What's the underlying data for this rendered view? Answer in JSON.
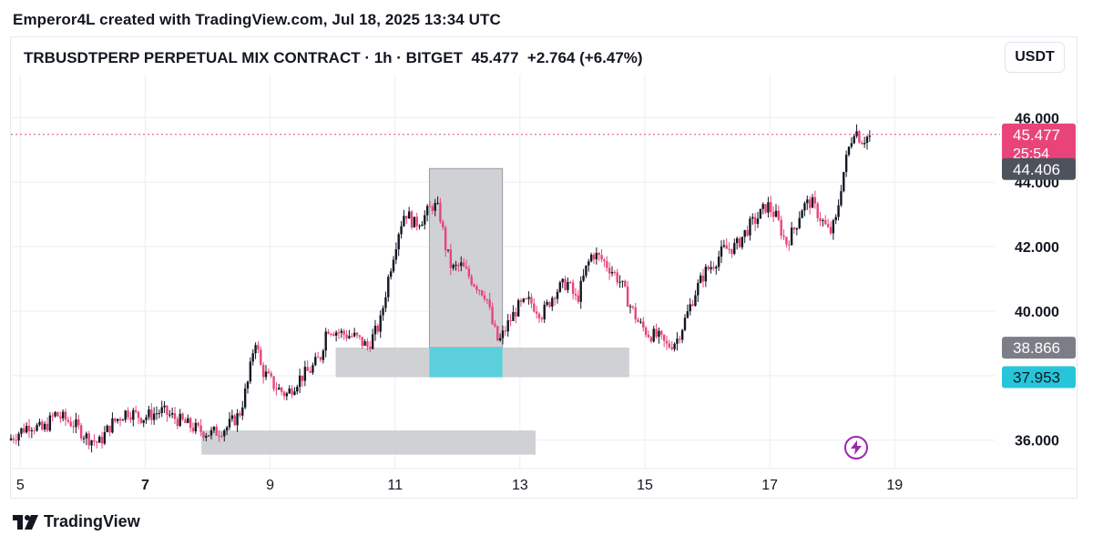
{
  "header": {
    "credit": "Emperor4L created with TradingView.com, Jul 18, 2025 13:34 UTC",
    "symbol": "TRBUSDTPERP PERPETUAL MIX CONTRACT · 1h · BITGET",
    "price": "45.477",
    "change": "+2.764 (+6.47%)",
    "currency": "USDT"
  },
  "footer": {
    "brand": "TradingView"
  },
  "colors": {
    "up": "#131722",
    "down": "#e8457a",
    "zone": "#c8c9cd",
    "cyan": "#5bcfdc",
    "price_tag": "#e9447a",
    "dark_tag": "#4e525c",
    "grey_tag": "#7b7e87",
    "cyan_tag": "#26c6da",
    "grid": "#eceef2"
  },
  "chart_data": {
    "type": "candlestick",
    "interval": "1h",
    "ylim": [
      35.4,
      46.6
    ],
    "xlim": [
      4.85,
      20.6
    ],
    "x_ticks": [
      {
        "v": 5,
        "label": "5"
      },
      {
        "v": 7,
        "label": "7"
      },
      {
        "v": 9,
        "label": "9"
      },
      {
        "v": 11,
        "label": "11"
      },
      {
        "v": 13,
        "label": "13"
      },
      {
        "v": 15,
        "label": "15"
      },
      {
        "v": 17,
        "label": "17"
      },
      {
        "v": 19,
        "label": "19"
      }
    ],
    "y_ticks": [
      {
        "v": 36,
        "label": "36.000"
      },
      {
        "v": 38,
        "label": ""
      },
      {
        "v": 40,
        "label": "40.000"
      },
      {
        "v": 42,
        "label": "42.000"
      },
      {
        "v": 44,
        "label": "44.000"
      },
      {
        "v": 46,
        "label": "46.000"
      }
    ],
    "price_tags": [
      {
        "value": 45.477,
        "label": "45.477",
        "sub": "25:54",
        "kind": "current"
      },
      {
        "value": 44.406,
        "label": "44.406",
        "kind": "dark"
      },
      {
        "value": 38.866,
        "label": "38.866",
        "kind": "grey"
      },
      {
        "value": 37.953,
        "label": "37.953",
        "kind": "cyan"
      }
    ],
    "current_price_line": 45.477,
    "zones": [
      {
        "x0": 10.05,
        "x1": 14.75,
        "y0": 37.95,
        "y1": 38.87,
        "kind": "grey"
      },
      {
        "x0": 7.9,
        "x1": 13.25,
        "y0": 35.55,
        "y1": 36.3,
        "kind": "grey"
      },
      {
        "x0": 11.55,
        "x1": 12.72,
        "y0": 38.87,
        "y1": 44.42,
        "kind": "grey-tall"
      },
      {
        "x0": 11.55,
        "x1": 12.72,
        "y0": 37.95,
        "y1": 38.87,
        "kind": "cyan"
      }
    ],
    "price_path": [
      [
        4.85,
        36.0
      ],
      [
        5.2,
        36.5
      ],
      [
        5.4,
        36.3
      ],
      [
        5.6,
        36.8
      ],
      [
        5.9,
        36.5
      ],
      [
        6.1,
        36.1
      ],
      [
        6.3,
        35.9
      ],
      [
        6.5,
        36.5
      ],
      [
        6.75,
        36.9
      ],
      [
        7.0,
        36.7
      ],
      [
        7.3,
        36.9
      ],
      [
        7.6,
        36.6
      ],
      [
        7.9,
        36.3
      ],
      [
        8.1,
        36.2
      ],
      [
        8.35,
        36.4
      ],
      [
        8.55,
        36.8
      ],
      [
        8.7,
        37.9
      ],
      [
        8.8,
        39.2
      ],
      [
        8.9,
        38.2
      ],
      [
        9.1,
        37.7
      ],
      [
        9.3,
        37.4
      ],
      [
        9.5,
        37.9
      ],
      [
        9.7,
        38.2
      ],
      [
        9.85,
        38.6
      ],
      [
        9.95,
        39.5
      ],
      [
        10.2,
        39.3
      ],
      [
        10.4,
        39.2
      ],
      [
        10.6,
        38.9
      ],
      [
        10.8,
        39.6
      ],
      [
        10.95,
        41.2
      ],
      [
        11.1,
        42.5
      ],
      [
        11.2,
        43.1
      ],
      [
        11.35,
        42.7
      ],
      [
        11.5,
        42.9
      ],
      [
        11.65,
        43.3
      ],
      [
        11.75,
        43.1
      ],
      [
        11.85,
        42.0
      ],
      [
        11.95,
        41.3
      ],
      [
        12.1,
        41.4
      ],
      [
        12.3,
        40.9
      ],
      [
        12.5,
        40.5
      ],
      [
        12.6,
        39.6
      ],
      [
        12.7,
        39.0
      ],
      [
        12.85,
        39.6
      ],
      [
        13.0,
        40.1
      ],
      [
        13.2,
        40.3
      ],
      [
        13.4,
        39.9
      ],
      [
        13.6,
        40.6
      ],
      [
        13.8,
        40.9
      ],
      [
        13.95,
        40.3
      ],
      [
        14.1,
        41.3
      ],
      [
        14.2,
        41.8
      ],
      [
        14.35,
        41.6
      ],
      [
        14.5,
        41.3
      ],
      [
        14.65,
        40.9
      ],
      [
        14.8,
        40.2
      ],
      [
        14.95,
        39.6
      ],
      [
        15.1,
        39.3
      ],
      [
        15.25,
        39.2
      ],
      [
        15.4,
        38.9
      ],
      [
        15.55,
        39.1
      ],
      [
        15.7,
        39.8
      ],
      [
        15.85,
        40.6
      ],
      [
        16.0,
        41.2
      ],
      [
        16.15,
        41.5
      ],
      [
        16.3,
        41.9
      ],
      [
        16.5,
        42.0
      ],
      [
        16.7,
        42.6
      ],
      [
        16.85,
        42.9
      ],
      [
        17.0,
        43.3
      ],
      [
        17.15,
        42.9
      ],
      [
        17.3,
        42.1
      ],
      [
        17.45,
        42.6
      ],
      [
        17.55,
        43.2
      ],
      [
        17.7,
        43.4
      ],
      [
        17.85,
        42.9
      ],
      [
        18.0,
        42.4
      ],
      [
        18.1,
        42.8
      ],
      [
        18.2,
        44.1
      ],
      [
        18.3,
        45.0
      ],
      [
        18.4,
        45.7
      ],
      [
        18.5,
        45.3
      ],
      [
        18.6,
        45.4
      ]
    ]
  }
}
